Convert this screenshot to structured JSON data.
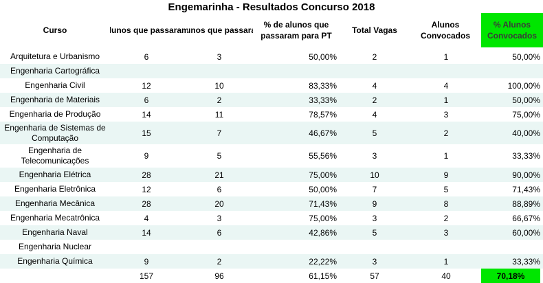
{
  "title": "Engemarinha - Resultados Concurso 2018",
  "headers": {
    "curso": "Curso",
    "passaram1": "Alunos que passaram",
    "passaram2": "Alunos que passaram para PT",
    "pct": "% de alunos que passaram para PT",
    "vagas": "Total Vagas",
    "convocados": "Alunos Convocados",
    "pct_conv": "% Alunos Convocados"
  },
  "colors": {
    "highlight": "#00e600",
    "band": "#eaf6f4"
  },
  "rows": [
    {
      "curso": "Arquitetura e Urbanismo",
      "a": "6",
      "b": "3",
      "pct": "50,00%",
      "vagas": "2",
      "conv": "1",
      "pct_conv": "50,00%"
    },
    {
      "curso": "Engenharia Cartográfica",
      "a": "",
      "b": "",
      "pct": "",
      "vagas": "",
      "conv": "",
      "pct_conv": ""
    },
    {
      "curso": "Engenharia Civil",
      "a": "12",
      "b": "10",
      "pct": "83,33%",
      "vagas": "4",
      "conv": "4",
      "pct_conv": "100,00%"
    },
    {
      "curso": "Engenharia de Materiais",
      "a": "6",
      "b": "2",
      "pct": "33,33%",
      "vagas": "2",
      "conv": "1",
      "pct_conv": "50,00%"
    },
    {
      "curso": "Engenharia de Produção",
      "a": "14",
      "b": "11",
      "pct": "78,57%",
      "vagas": "4",
      "conv": "3",
      "pct_conv": "75,00%"
    },
    {
      "curso": "Engenharia de Sistemas de Computação",
      "a": "15",
      "b": "7",
      "pct": "46,67%",
      "vagas": "5",
      "conv": "2",
      "pct_conv": "40,00%"
    },
    {
      "curso": "Engenharia de Telecomunicações",
      "a": "9",
      "b": "5",
      "pct": "55,56%",
      "vagas": "3",
      "conv": "1",
      "pct_conv": "33,33%"
    },
    {
      "curso": "Engenharia Elétrica",
      "a": "28",
      "b": "21",
      "pct": "75,00%",
      "vagas": "10",
      "conv": "9",
      "pct_conv": "90,00%"
    },
    {
      "curso": "Engenharia Eletrônica",
      "a": "12",
      "b": "6",
      "pct": "50,00%",
      "vagas": "7",
      "conv": "5",
      "pct_conv": "71,43%"
    },
    {
      "curso": "Engenharia Mecânica",
      "a": "28",
      "b": "20",
      "pct": "71,43%",
      "vagas": "9",
      "conv": "8",
      "pct_conv": "88,89%"
    },
    {
      "curso": "Engenharia Mecatrônica",
      "a": "4",
      "b": "3",
      "pct": "75,00%",
      "vagas": "3",
      "conv": "2",
      "pct_conv": "66,67%"
    },
    {
      "curso": "Engenharia Naval",
      "a": "14",
      "b": "6",
      "pct": "42,86%",
      "vagas": "5",
      "conv": "3",
      "pct_conv": "60,00%"
    },
    {
      "curso": "Engenharia Nuclear",
      "a": "",
      "b": "",
      "pct": "",
      "vagas": "",
      "conv": "",
      "pct_conv": ""
    },
    {
      "curso": "Engenharia Química",
      "a": "9",
      "b": "2",
      "pct": "22,22%",
      "vagas": "3",
      "conv": "1",
      "pct_conv": "33,33%"
    }
  ],
  "total": {
    "a": "157",
    "b": "96",
    "pct": "61,15%",
    "vagas": "57",
    "conv": "40",
    "pct_conv": "70,18%"
  }
}
